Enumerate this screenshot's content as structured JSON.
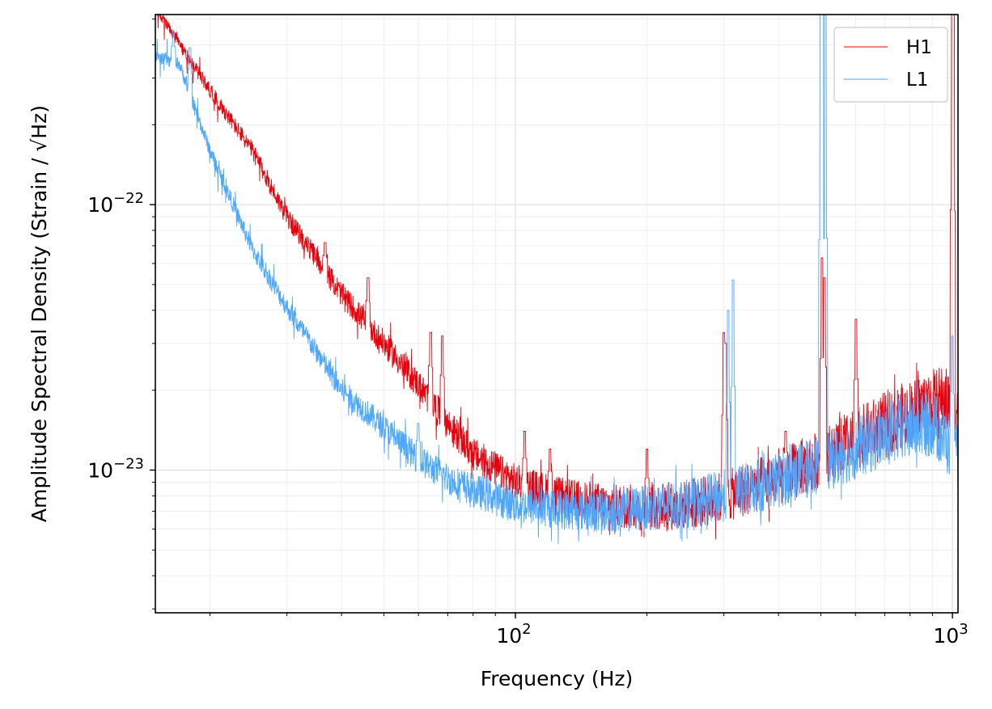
{
  "chart_data": {
    "type": "line",
    "xlabel": "Frequency (Hz)",
    "ylabel": "Amplitude Spectral Density (Strain / √Hz)",
    "xscale": "log",
    "yscale": "log",
    "xlim": [
      15,
      1030
    ],
    "ylim": [
      2.9e-24,
      5.2e-22
    ],
    "x_ticks": [
      {
        "base": "10",
        "exp": "2",
        "value": 100
      },
      {
        "base": "10",
        "exp": "3",
        "value": 1000
      }
    ],
    "y_ticks": [
      {
        "base": "10",
        "exp": "−23",
        "value": 1e-23
      },
      {
        "base": "10",
        "exp": "−22",
        "value": 1e-22
      }
    ],
    "grid": "major and minor, light gray",
    "legend": {
      "position": "top-right",
      "entries": [
        "H1",
        "L1"
      ]
    },
    "series": [
      {
        "name": "H1",
        "color": "#e8000b",
        "baseline": [
          [
            15,
            5.5e-22
          ],
          [
            20,
            2.7e-22
          ],
          [
            25,
            1.6e-22
          ],
          [
            30,
            9e-23
          ],
          [
            35,
            6.3e-23
          ],
          [
            40,
            4.6e-23
          ],
          [
            50,
            3e-23
          ],
          [
            60,
            2.1e-23
          ],
          [
            70,
            1.5e-23
          ],
          [
            80,
            1.15e-23
          ],
          [
            100,
            9e-24
          ],
          [
            130,
            7.8e-24
          ],
          [
            160,
            7.4e-24
          ],
          [
            200,
            7.2e-24
          ],
          [
            250,
            7.4e-24
          ],
          [
            300,
            7.9e-24
          ],
          [
            400,
            9.4e-24
          ],
          [
            500,
            1.1e-23
          ],
          [
            600,
            1.3e-23
          ],
          [
            700,
            1.5e-23
          ],
          [
            800,
            1.65e-23
          ],
          [
            900,
            1.8e-23
          ],
          [
            950,
            1.85e-23
          ],
          [
            1000,
            1.75e-23
          ],
          [
            1024,
            1.7e-23
          ]
        ],
        "peaks": [
          [
            36.7,
            7.2e-23
          ],
          [
            46,
            5.3e-23
          ],
          [
            64,
            3.3e-23
          ],
          [
            68,
            3.2e-23
          ],
          [
            105,
            1.4e-23
          ],
          [
            120,
            1.2e-23
          ],
          [
            200,
            1.2e-23
          ],
          [
            300,
            3.3e-23
          ],
          [
            303,
            3e-23
          ],
          [
            415,
            1.4e-23
          ],
          [
            503,
            6.3e-23
          ],
          [
            510,
            5.3e-23
          ],
          [
            602,
            3.7e-23
          ],
          [
            1000,
            5.2e-22
          ],
          [
            1005,
            5.2e-22
          ]
        ]
      },
      {
        "name": "L1",
        "color": "#4da6ff",
        "baseline": [
          [
            15,
            3.6e-22
          ],
          [
            17,
            3.4e-22
          ],
          [
            20,
            1.6e-22
          ],
          [
            25,
            6.8e-23
          ],
          [
            30,
            4.1e-23
          ],
          [
            35,
            2.8e-23
          ],
          [
            40,
            2e-23
          ],
          [
            50,
            1.45e-23
          ],
          [
            60,
            1.1e-23
          ],
          [
            70,
            9.3e-24
          ],
          [
            80,
            8.4e-24
          ],
          [
            100,
            7.4e-24
          ],
          [
            130,
            7.1e-24
          ],
          [
            160,
            7e-24
          ],
          [
            200,
            7.2e-24
          ],
          [
            250,
            7.5e-24
          ],
          [
            300,
            8e-24
          ],
          [
            400,
            9.2e-24
          ],
          [
            500,
            1.05e-23
          ],
          [
            600,
            1.2e-23
          ],
          [
            700,
            1.35e-23
          ],
          [
            800,
            1.45e-23
          ],
          [
            900,
            1.5e-23
          ],
          [
            950,
            1.35e-23
          ],
          [
            1000,
            1.2e-23
          ],
          [
            1024,
            1.1e-23
          ]
        ],
        "peaks": [
          [
            16.5,
            4.5e-22
          ],
          [
            18,
            3.9e-22
          ],
          [
            41,
            1.9e-23
          ],
          [
            59.9,
            1.5e-23
          ],
          [
            307,
            4e-23
          ],
          [
            315,
            5.2e-23
          ],
          [
            500,
            5.2e-22
          ],
          [
            505,
            5.2e-22
          ],
          [
            512,
            5.2e-22
          ],
          [
            1000,
            3.2e-23
          ]
        ]
      }
    ]
  }
}
